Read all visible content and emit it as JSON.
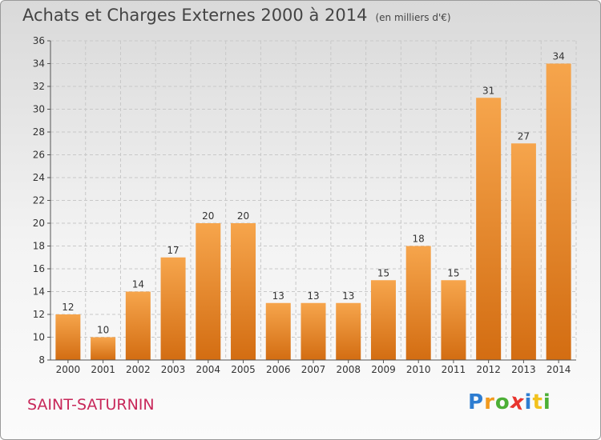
{
  "title": "Achats et Charges Externes 2000 à 2014",
  "unit_label": "(en milliers d'€)",
  "commune": "SAINT-SATURNIN",
  "brand": {
    "letters": [
      "P",
      "r",
      "o",
      "x",
      "i",
      "t",
      "i"
    ],
    "colors": [
      "#2e7dd1",
      "#f29a1e",
      "#4caf36",
      "#e8352e",
      "#2e7dd1",
      "#f2c21e",
      "#4caf36"
    ]
  },
  "colors": {
    "bar_top": "#f6a54c",
    "bar_bottom": "#d36d12",
    "grid": "#c8c8c8",
    "axis": "#555555",
    "text": "#333333"
  },
  "chart_data": {
    "type": "bar",
    "title": "Achats et Charges Externes 2000 à 2014",
    "subtitle": "(en milliers d'€)",
    "categories": [
      "2000",
      "2001",
      "2002",
      "2003",
      "2004",
      "2005",
      "2006",
      "2007",
      "2008",
      "2009",
      "2010",
      "2011",
      "2012",
      "2013",
      "2014"
    ],
    "values": [
      12,
      10,
      14,
      17,
      20,
      20,
      13,
      13,
      13,
      15,
      18,
      15,
      31,
      27,
      34
    ],
    "ylim": [
      8,
      36
    ],
    "yticks": [
      8,
      10,
      12,
      14,
      16,
      18,
      20,
      22,
      24,
      26,
      28,
      30,
      32,
      34,
      36
    ],
    "grid": true,
    "data_labels": true
  }
}
